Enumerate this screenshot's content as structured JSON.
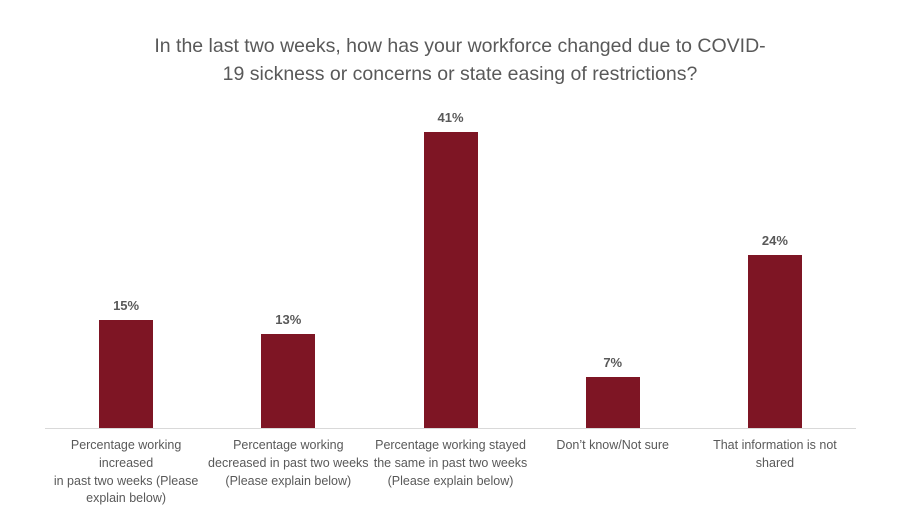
{
  "chart_data": {
    "type": "bar",
    "title": "In the last two weeks, how has your workforce changed due to COVID-19 sickness or concerns or state easing of restrictions?",
    "title_wrapped": "In the last two weeks, how has your workforce changed due to COVID-\n19 sickness or concerns or state easing of restrictions?",
    "categories": [
      "Percentage working increased in past two weeks (Please explain below)",
      "Percentage working decreased in past two weeks (Please explain below)",
      "Percentage working stayed the same in past two weeks (Please explain below)",
      "Don’t know/Not sure",
      "That information is not shared"
    ],
    "categories_wrapped": [
      "Percentage working increased\nin past two weeks (Please\nexplain below)",
      "Percentage working\ndecreased in past two weeks\n(Please explain below)",
      "Percentage working stayed\nthe same in past two weeks\n(Please explain below)",
      "Don’t know/Not sure",
      "That information is not\nshared"
    ],
    "values": [
      15,
      13,
      41,
      7,
      24
    ],
    "data_labels": [
      "15%",
      "13%",
      "41%",
      "7%",
      "24%"
    ],
    "unit": "%",
    "xlabel": "",
    "ylabel": "",
    "ylim": [
      0,
      45
    ],
    "grid": false,
    "legend": false,
    "colors": {
      "bar": "#7E1524",
      "text": "#595959",
      "axis_line": "#D9D9D9",
      "background": "#FFFFFF"
    }
  }
}
